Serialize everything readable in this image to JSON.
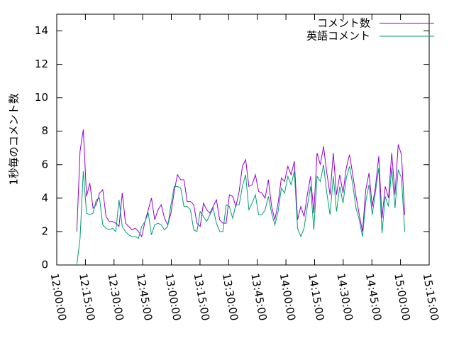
{
  "chart_data": {
    "type": "line",
    "y_label": "1秒毎のコメント数",
    "x": [
      "12:10:30",
      "12:12:12",
      "12:13:54",
      "12:15:36",
      "12:17:18",
      "12:19:00",
      "12:20:42",
      "12:22:24",
      "12:24:06",
      "12:25:48",
      "12:27:30",
      "12:29:12",
      "12:30:54",
      "12:32:36",
      "12:34:18",
      "12:36:00",
      "12:37:42",
      "12:39:24",
      "12:41:06",
      "12:42:48",
      "12:44:30",
      "12:46:12",
      "12:47:54",
      "12:49:36",
      "12:51:18",
      "12:53:00",
      "12:54:42",
      "12:56:24",
      "12:58:06",
      "12:59:48",
      "13:01:30",
      "13:03:12",
      "13:04:54",
      "13:06:36",
      "13:08:18",
      "13:10:00",
      "13:11:42",
      "13:13:24",
      "13:15:06",
      "13:16:48",
      "13:18:30",
      "13:20:12",
      "13:21:54",
      "13:23:36",
      "13:25:18",
      "13:27:00",
      "13:28:42",
      "13:30:24",
      "13:32:06",
      "13:33:48",
      "13:35:30",
      "13:37:12",
      "13:38:54",
      "13:40:36",
      "13:42:18",
      "13:44:00",
      "13:45:42",
      "13:47:24",
      "13:49:06",
      "13:50:48",
      "13:52:30",
      "13:54:12",
      "13:55:54",
      "13:57:36",
      "13:59:18",
      "14:01:00",
      "14:02:42",
      "14:04:24",
      "14:06:06",
      "14:07:48",
      "14:09:30",
      "14:11:12",
      "14:12:54",
      "14:14:36",
      "14:16:18",
      "14:18:00",
      "14:19:42",
      "14:21:24",
      "14:23:06",
      "14:24:48",
      "14:26:30",
      "14:28:12",
      "14:29:54",
      "14:31:36",
      "14:33:18",
      "14:35:00",
      "14:36:42",
      "14:38:24",
      "14:40:06",
      "14:41:48",
      "14:43:30",
      "14:45:12",
      "14:46:54",
      "14:48:36",
      "14:50:18",
      "14:52:00",
      "14:53:42",
      "14:55:24",
      "14:57:06",
      "14:58:48",
      "15:00:30",
      "15:02:12"
    ],
    "series": [
      {
        "name": "コメント数",
        "color": "#9400d3",
        "values": [
          2,
          6.8,
          8.1,
          4.1,
          4.9,
          3.4,
          3.6,
          4.3,
          4.5,
          2.9,
          2.6,
          2.6,
          2.5,
          2.3,
          4.3,
          2.5,
          2.3,
          2.1,
          2.2,
          2.0,
          1.7,
          2.6,
          3.3,
          4.0,
          2.7,
          3.3,
          3.6,
          2.8,
          2.4,
          3.1,
          4.4,
          5.4,
          5.1,
          5.1,
          3.8,
          3.8,
          3.6,
          2.5,
          2.3,
          3.7,
          3.3,
          3.1,
          3.5,
          3.9,
          2.7,
          2.5,
          2.5,
          4.2,
          4.1,
          3.5,
          4.4,
          5.9,
          6.3,
          4.7,
          4.8,
          5.4,
          4.4,
          4.3,
          4.0,
          5.1,
          3.5,
          2.7,
          3.7,
          5.2,
          5.0,
          5.9,
          5.4,
          6.2,
          2.7,
          3.5,
          2.9,
          4.2,
          5.3,
          3.1,
          6.7,
          6.0,
          7.1,
          5.5,
          4.2,
          6.7,
          4.2,
          5.4,
          4.3,
          5.8,
          6.6,
          5.4,
          4.1,
          3.0,
          2.0,
          4.5,
          5.5,
          3.5,
          4.7,
          6.5,
          2.8,
          4.7,
          4.0,
          6.7,
          4.2,
          7.2,
          6.6,
          3.0
        ]
      },
      {
        "name": "英語コメント",
        "color": "#009e73",
        "values": [
          0,
          1.6,
          5.6,
          3.1,
          3.0,
          3.1,
          3.9,
          4.0,
          2.4,
          2.2,
          2.1,
          2.2,
          2.0,
          3.9,
          2.3,
          2.0,
          1.8,
          1.7,
          1.7,
          1.6,
          2.3,
          2.6,
          3.1,
          1.8,
          2.4,
          2.5,
          2.4,
          2.1,
          2.3,
          3.6,
          4.7,
          4.7,
          4.6,
          3.5,
          3.5,
          3.3,
          2.1,
          2.0,
          3.2,
          2.9,
          2.6,
          3.0,
          3.4,
          2.5,
          2.0,
          2.0,
          3.6,
          3.5,
          2.8,
          3.6,
          3.6,
          4.7,
          5.4,
          3.3,
          3.7,
          4.2,
          3.0,
          3.0,
          3.3,
          4.1,
          3.1,
          2.4,
          3.2,
          4.6,
          4.3,
          5.3,
          4.8,
          5.6,
          2.2,
          1.7,
          2.2,
          3.5,
          4.7,
          2.1,
          5.3,
          5.0,
          6.0,
          4.3,
          3.0,
          5.3,
          3.2,
          4.7,
          3.7,
          5.2,
          5.9,
          4.8,
          3.4,
          2.7,
          1.7,
          3.8,
          4.8,
          3.0,
          4.4,
          5.8,
          1.9,
          4.1,
          3.5,
          5.8,
          3.4,
          5.7,
          5.2,
          2.0
        ]
      }
    ],
    "xlim": [
      "12:00:00",
      "15:15:00"
    ],
    "xticks": [
      "12:00:00",
      "12:15:00",
      "12:30:00",
      "12:45:00",
      "13:00:00",
      "13:15:00",
      "13:30:00",
      "13:45:00",
      "14:00:00",
      "14:15:00",
      "14:30:00",
      "14:45:00",
      "15:00:00",
      "15:15:00"
    ],
    "ylim": [
      0,
      15
    ],
    "yticks": [
      0,
      2,
      4,
      6,
      8,
      10,
      12,
      14
    ],
    "legend": "top-right"
  }
}
